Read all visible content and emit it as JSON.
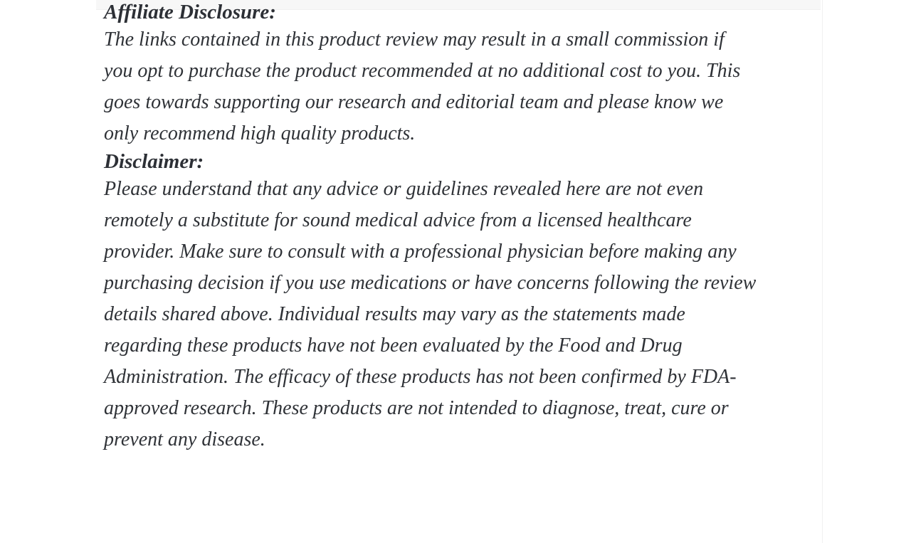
{
  "page": {
    "background_color": "#ffffff",
    "top_strip_color": "#f7f7f7",
    "divider_color": "#f0f0f0",
    "text_color": "#2f3237"
  },
  "article": {
    "affiliate": {
      "heading": "Affiliate Disclosure:",
      "paragraph": "The links contained in this product review may result in a small commission if\nyou opt to purchase the product recommended at no additional cost to you. This\ngoes towards supporting our research and editorial team and please know we\nonly recommend high quality products."
    },
    "disclaimer": {
      "heading": "Disclaimer:",
      "paragraph": "Please understand that any advice or guidelines revealed here are not even\nremotely a substitute for sound medical advice from a licensed healthcare\nprovider. Make sure to consult with a professional physician before making any\npurchasing decision if you use medications or have concerns following the review\ndetails shared above. Individual results may vary as the statements made\nregarding these products have not been evaluated by the Food and Drug\nAdministration. The efficacy of these products has not been confirmed by FDA-\napproved research. These products are not intended to diagnose, treat, cure or\nprevent any disease."
    }
  }
}
